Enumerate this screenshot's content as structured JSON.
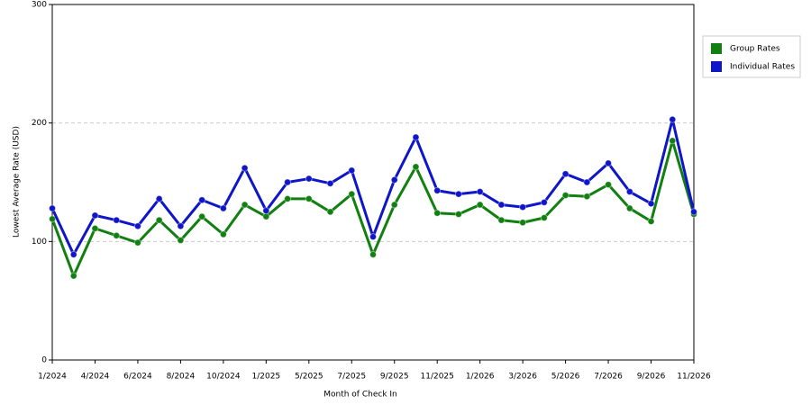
{
  "chart_data": {
    "type": "line",
    "xlabel": "Month of Check In",
    "ylabel": "Lowest Average Rate (USD)",
    "categories": [
      "1/2024",
      null,
      "4/2024",
      null,
      "6/2024",
      null,
      "8/2024",
      null,
      "10/2024",
      null,
      "1/2025",
      null,
      "5/2025",
      null,
      "7/2025",
      null,
      "9/2025",
      null,
      "11/2025",
      null,
      "1/2026",
      null,
      "3/2026",
      null,
      "5/2026",
      null,
      "7/2026",
      null,
      "9/2026",
      null,
      "11/2026"
    ],
    "series": [
      {
        "name": "Group Rates",
        "color": "#118011",
        "values": [
          119,
          71,
          111,
          105,
          99,
          118,
          101,
          121,
          106,
          131,
          121,
          136,
          136,
          125,
          140,
          89,
          131,
          163,
          124,
          123,
          131,
          118,
          116,
          120,
          139,
          138,
          148,
          128,
          117,
          185,
          123
        ]
      },
      {
        "name": "Individual Rates",
        "color": "#0f15c8",
        "values": [
          128,
          89,
          122,
          118,
          113,
          136,
          113,
          135,
          128,
          162,
          126,
          150,
          153,
          149,
          160,
          104,
          152,
          188,
          143,
          140,
          142,
          131,
          129,
          133,
          157,
          150,
          166,
          142,
          132,
          203,
          125
        ]
      }
    ],
    "ylim": [
      0,
      300
    ],
    "yticks": [
      0,
      100,
      200,
      300
    ],
    "grid": true,
    "legend": "right"
  }
}
